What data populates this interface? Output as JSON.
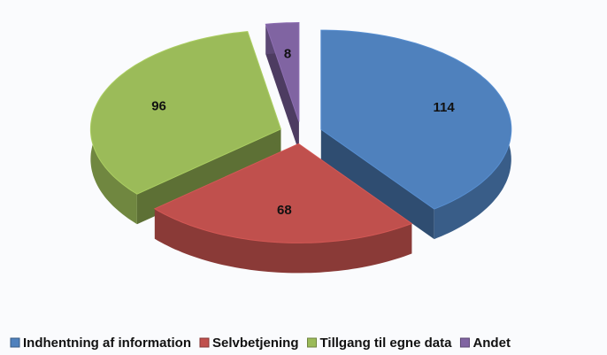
{
  "chart_data": {
    "type": "pie",
    "categories": [
      "Indhentning af information",
      "Selvbetjening",
      "Tillgang til egne data",
      "Andet"
    ],
    "values": [
      114,
      68,
      96,
      8
    ],
    "colors": [
      "#4f81bd",
      "#c0504d",
      "#9bbb59",
      "#8064a2"
    ],
    "legend": "bottom"
  }
}
